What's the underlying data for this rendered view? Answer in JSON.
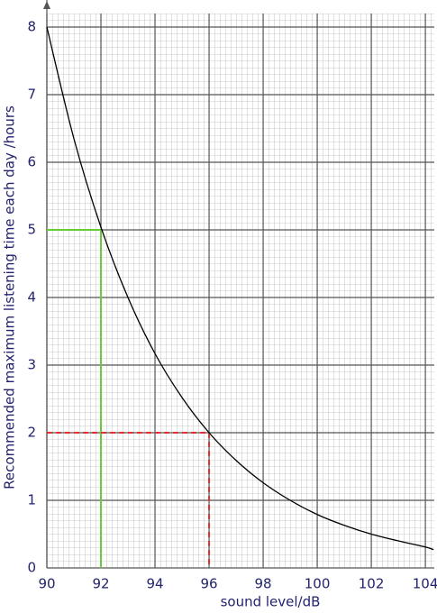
{
  "chart_data": {
    "type": "line",
    "x_label": "sound level/dB",
    "y_label": "Recommended maximum listening time each day /hours",
    "x": [
      90,
      91,
      92,
      93,
      94,
      95,
      96,
      97,
      98,
      99,
      100,
      101,
      102,
      103,
      104,
      104.3
    ],
    "series": [
      {
        "color": "#000000",
        "values": [
          8,
          6.35,
          5.04,
          4,
          3.17,
          2.52,
          2,
          1.59,
          1.26,
          1,
          0.79,
          0.63,
          0.5,
          0.4,
          0.31,
          0.27
        ]
      }
    ],
    "xlim": [
      90,
      104.33
    ],
    "ylim": [
      0,
      8.2
    ],
    "xticks": [
      90,
      92,
      94,
      96,
      98,
      100,
      102,
      104
    ],
    "yticks": [
      0,
      1,
      2,
      3,
      4,
      5,
      6,
      7,
      8
    ],
    "grid": true,
    "reference_lines": [
      {
        "x": 92,
        "y": 5,
        "color": "#66cc33",
        "dashed": false
      },
      {
        "x": 96,
        "y": 2,
        "color": "#e03030",
        "dashed": true
      }
    ]
  }
}
